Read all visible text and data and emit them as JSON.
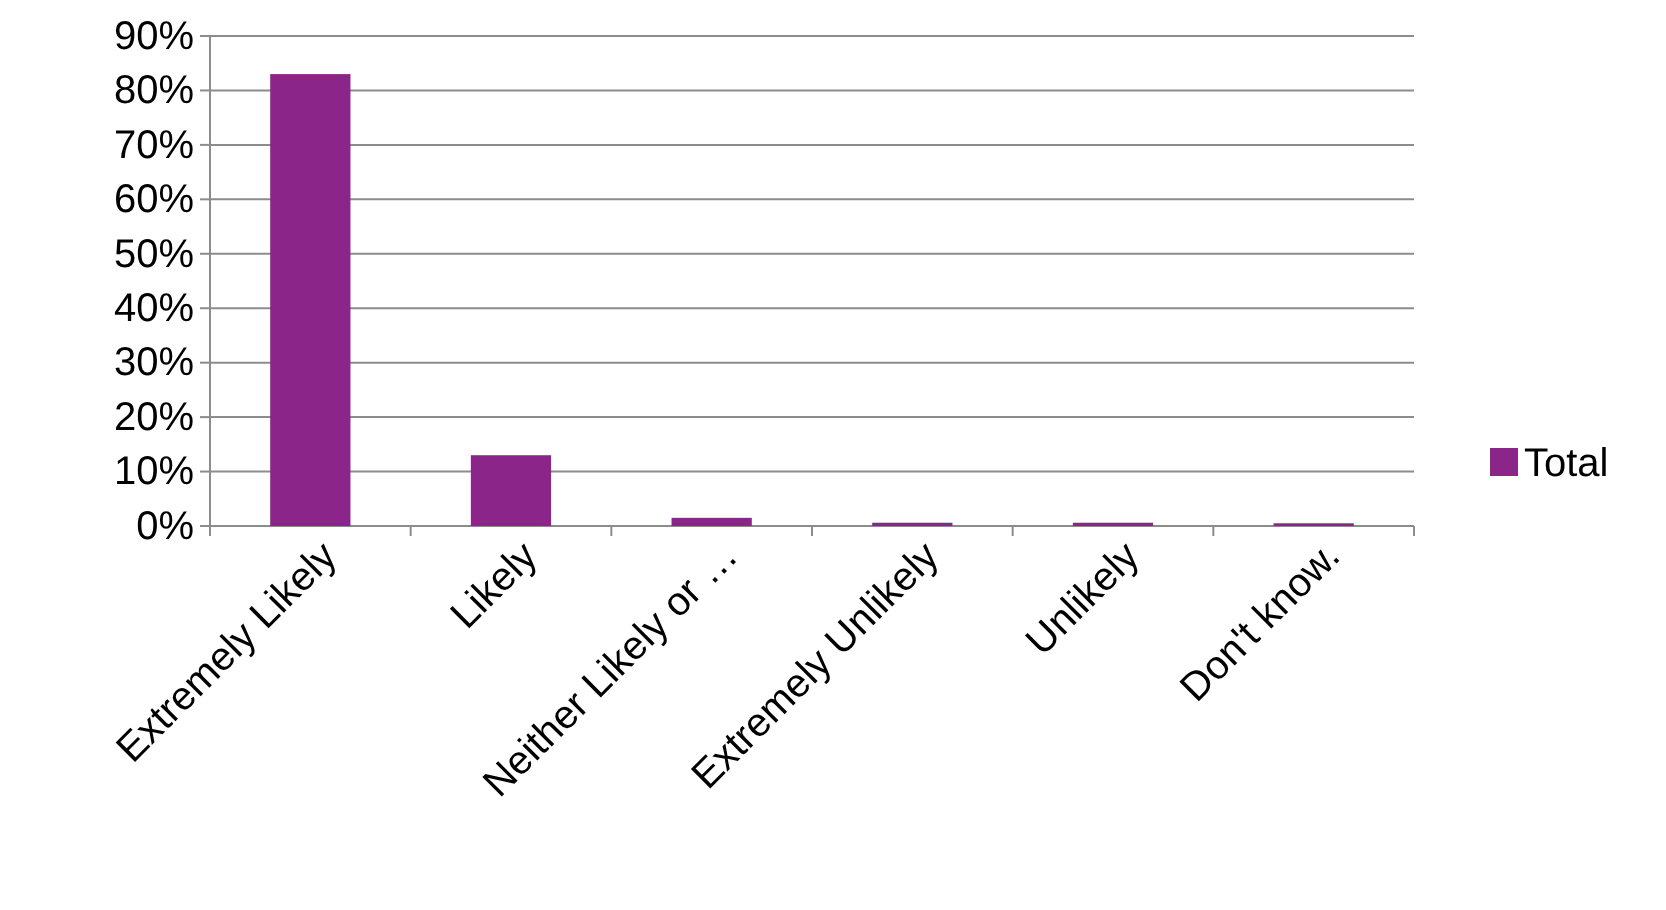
{
  "chart_data": {
    "type": "bar",
    "categories": [
      "Extremely Likely",
      "Likely",
      "Neither Likely or …",
      "Extremely Unlikely",
      "Unlikely",
      "Don't know."
    ],
    "series": [
      {
        "name": "Total",
        "color": "#8b2589",
        "values": [
          83,
          13,
          1.5,
          0.6,
          0.6,
          0.5
        ]
      }
    ],
    "ylim": [
      0,
      90
    ],
    "yticks": [
      {
        "value": 0,
        "label": "0%"
      },
      {
        "value": 10,
        "label": "10%"
      },
      {
        "value": 20,
        "label": "20%"
      },
      {
        "value": 30,
        "label": "30%"
      },
      {
        "value": 40,
        "label": "40%"
      },
      {
        "value": 50,
        "label": "50%"
      },
      {
        "value": 60,
        "label": "60%"
      },
      {
        "value": 70,
        "label": "70%"
      },
      {
        "value": 80,
        "label": "80%"
      },
      {
        "value": 90,
        "label": "90%"
      }
    ],
    "grid": "y",
    "legend": "right"
  }
}
